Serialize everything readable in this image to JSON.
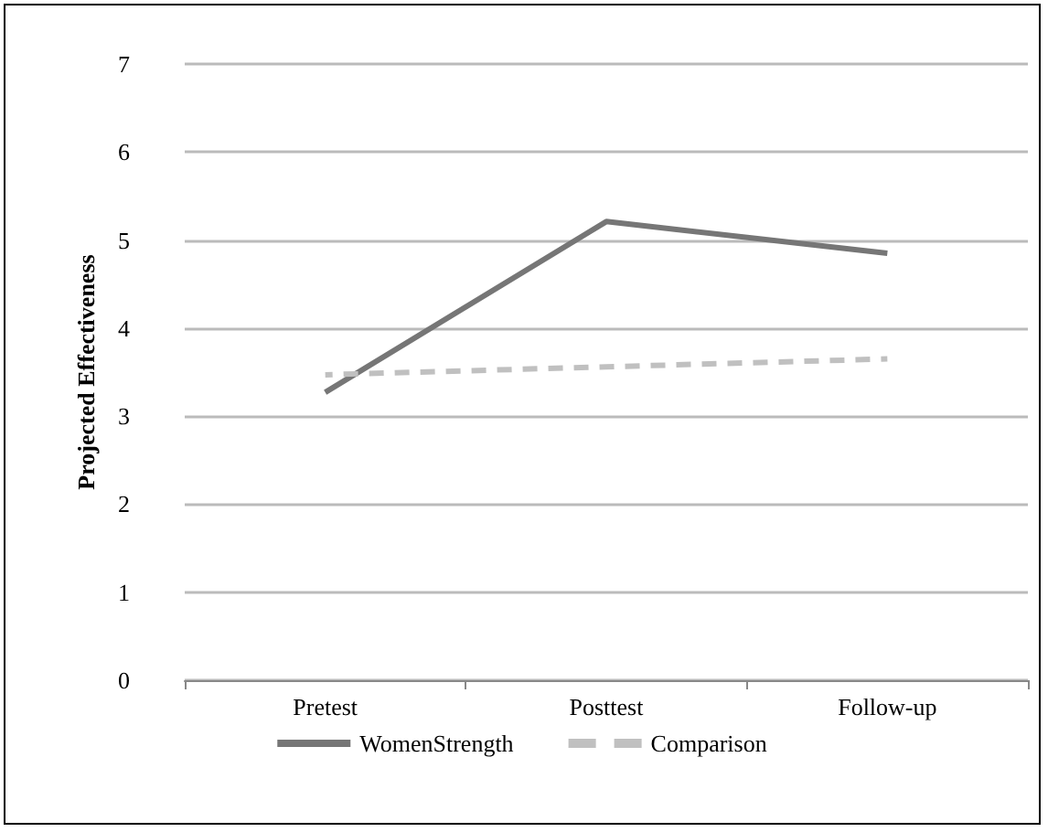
{
  "chart_data": {
    "type": "line",
    "ylabel": "Projected Effectiveness",
    "categories": [
      "Pretest",
      "Posttest",
      "Follow-up"
    ],
    "series": [
      {
        "name": "WomenStrength",
        "color": "#767676",
        "values": [
          3.27,
          5.21,
          4.85
        ],
        "line_style": "solid"
      },
      {
        "name": "Comparison",
        "color": "#c0c0c0",
        "values": [
          3.47,
          3.56,
          3.65
        ],
        "line_style": "dashed"
      }
    ],
    "ylim": [
      0,
      7
    ],
    "yticks": [
      0,
      1,
      2,
      3,
      4,
      5,
      6,
      7
    ],
    "grid": "y",
    "legend": "bottom",
    "marker": "none"
  }
}
